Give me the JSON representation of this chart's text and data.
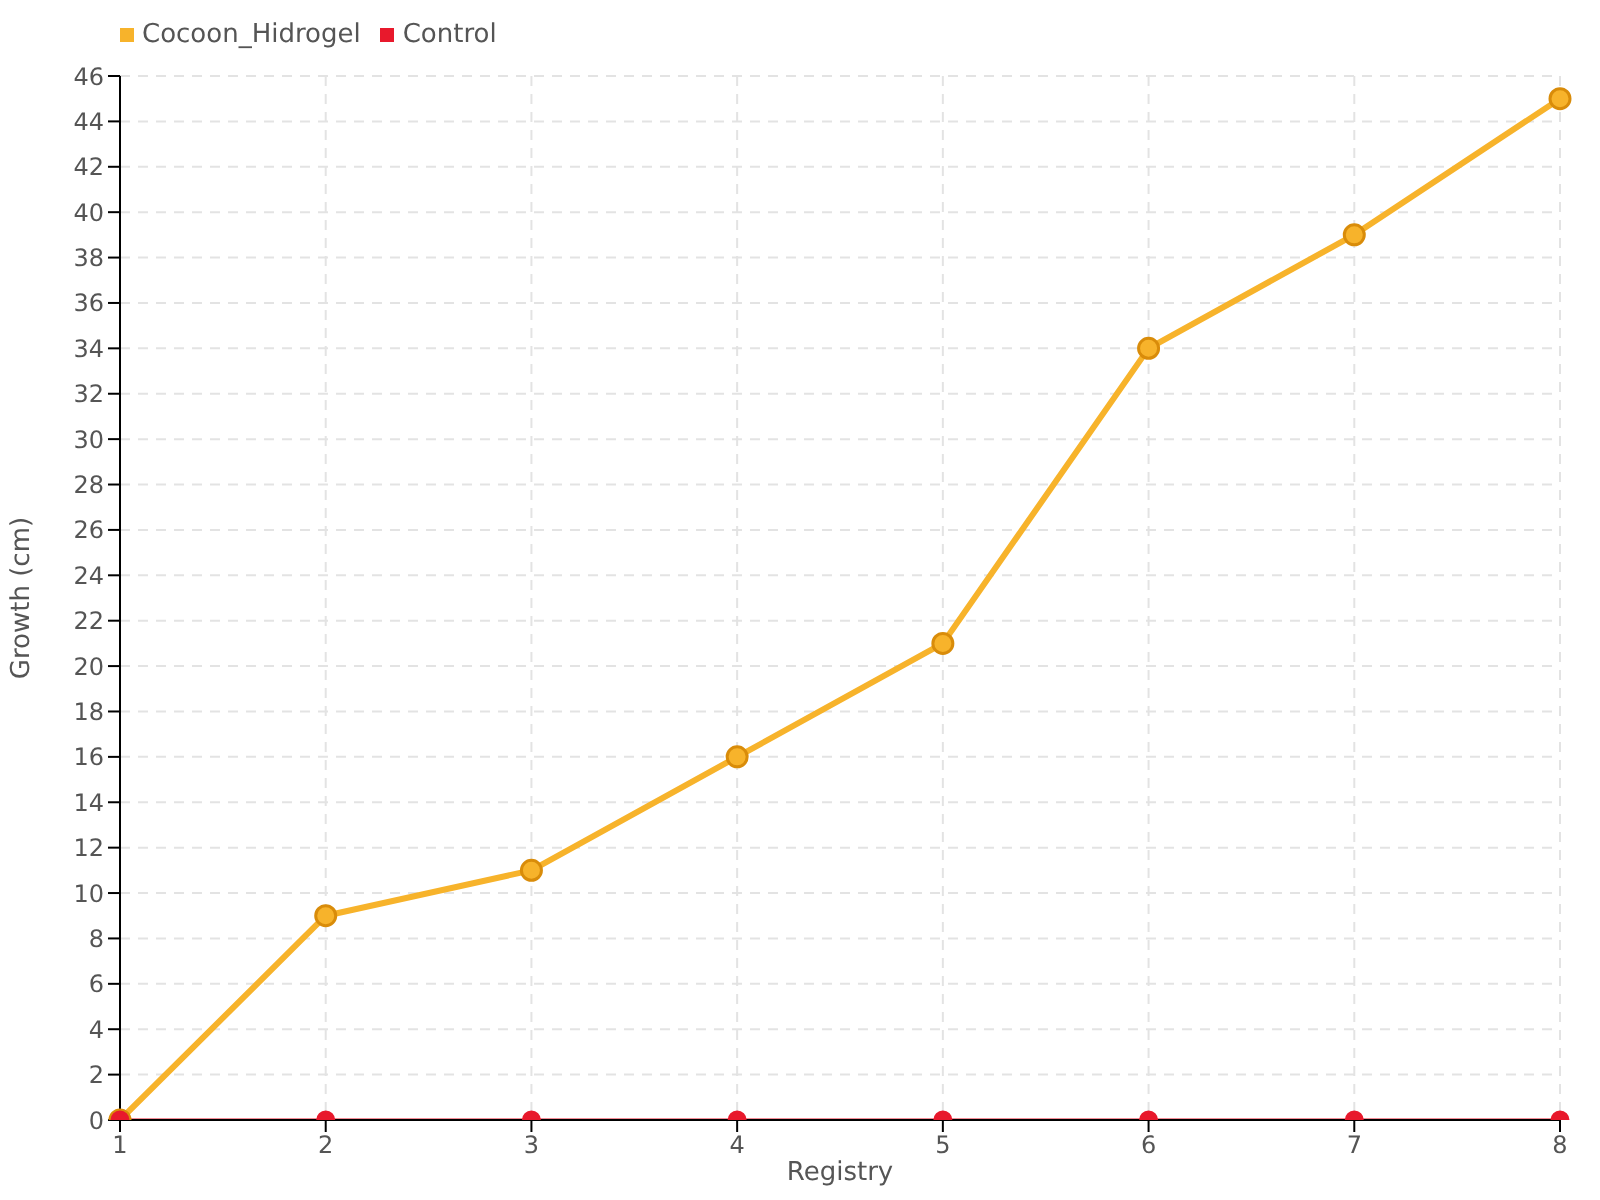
{
  "chart_data": {
    "type": "line",
    "xlabel": "Registry",
    "ylabel": "Growth (cm)",
    "categories": [
      "1",
      "2",
      "3",
      "4",
      "5",
      "6",
      "7",
      "8"
    ],
    "series": [
      {
        "name": "Cocoon_Hidrogel",
        "color": "#f7b32b",
        "values": [
          0,
          9,
          11,
          16,
          21,
          34,
          39,
          45
        ]
      },
      {
        "name": "Control",
        "color": "#e8192c",
        "values": [
          0,
          0,
          0,
          0,
          0,
          0,
          0,
          0
        ]
      }
    ],
    "ylim": [
      0,
      46
    ],
    "yticks": [
      0,
      2,
      4,
      6,
      8,
      10,
      12,
      14,
      16,
      18,
      20,
      22,
      24,
      26,
      28,
      30,
      32,
      34,
      36,
      38,
      40,
      42,
      44,
      46
    ],
    "grid": true,
    "legend": "top left",
    "marker": "circle",
    "line_style": "solid"
  }
}
